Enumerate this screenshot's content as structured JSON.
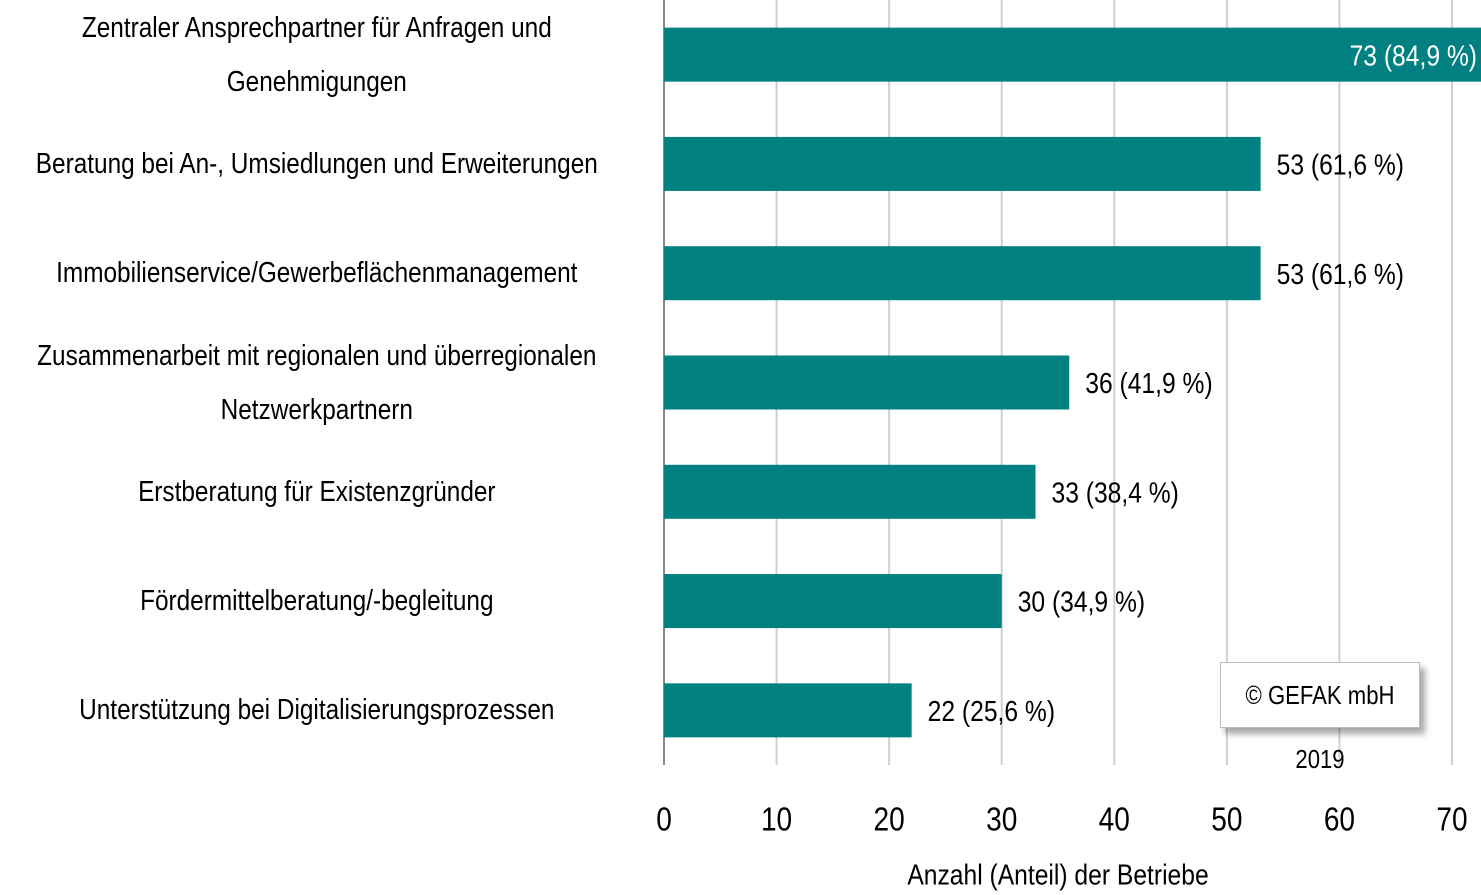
{
  "chart_data": {
    "type": "hbar",
    "categories": [
      "Zentraler Ansprechpartner für Anfragen und Genehmigungen",
      "Beratung bei An-, Umsiedlungen und Erweiterungen",
      "Immobilienservice/Gewerbeflächenmanagement",
      "Zusammenarbeit mit regionalen und überregionalen Netzwerkpartnern",
      "Erstberatung für Existenzgründer",
      "Fördermittelberatung/-begleitung",
      "Unterstützung bei Digitalisierungsprozessen"
    ],
    "values": [
      73,
      53,
      53,
      36,
      33,
      30,
      22
    ],
    "value_labels": [
      "73 (84,9 %)",
      "53 (61,6 %)",
      "53 (61,6 %)",
      "36 (41,9 %)",
      "33 (38,4 %)",
      "30 (34,9 %)",
      "22 (25,6 %)"
    ],
    "color": "#008080",
    "xlabel": "Anzahl (Anteil) der Betriebe",
    "xlim": [
      0,
      70
    ],
    "xticks": [
      0,
      10,
      20,
      30,
      40,
      50,
      60,
      70
    ],
    "grid": true,
    "annotation": "© GEFAK mbH 2019"
  }
}
